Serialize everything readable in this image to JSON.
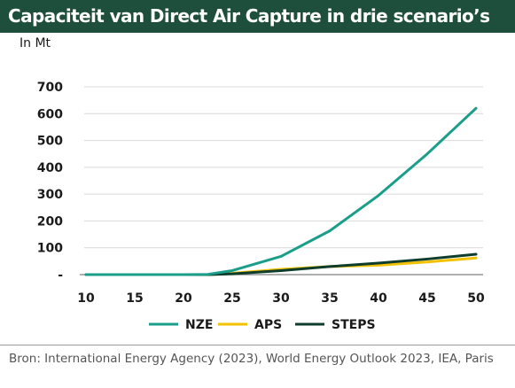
{
  "title": "Capaciteit van Direct Air Capture in drie scenario’s",
  "unit": "In Mt",
  "source": "Bron:  International Energy Agency (2023), World Energy Outlook 2023, IEA, Paris",
  "colors": {
    "title_bg": "#1d4f3c",
    "NZE": "#1a9e8a",
    "APS": "#f2c200",
    "STEPS": "#0f3d2c",
    "grid": "#d9d9d9"
  },
  "chart_data": {
    "type": "line",
    "x": [
      10,
      15,
      20,
      22.5,
      25,
      30,
      35,
      40,
      45,
      50
    ],
    "series": [
      {
        "name": "NZE",
        "values": [
          0,
          0,
          0,
          1,
          15,
          68,
          163,
          295,
          450,
          620
        ]
      },
      {
        "name": "APS",
        "values": [
          0,
          0,
          0,
          0,
          5,
          20,
          30,
          35,
          47,
          62
        ]
      },
      {
        "name": "STEPS",
        "values": [
          0,
          0,
          0,
          0,
          3,
          15,
          30,
          43,
          58,
          76
        ]
      }
    ],
    "x_ticks": [
      "10",
      "15",
      "20",
      "25",
      "30",
      "35",
      "40",
      "45",
      "50"
    ],
    "y_ticks": [
      "-",
      "100",
      "200",
      "300",
      "400",
      "500",
      "600",
      "700"
    ],
    "xlim": [
      10,
      50
    ],
    "ylim": [
      0,
      700
    ],
    "grid": "horizontal",
    "legend": "bottom"
  }
}
